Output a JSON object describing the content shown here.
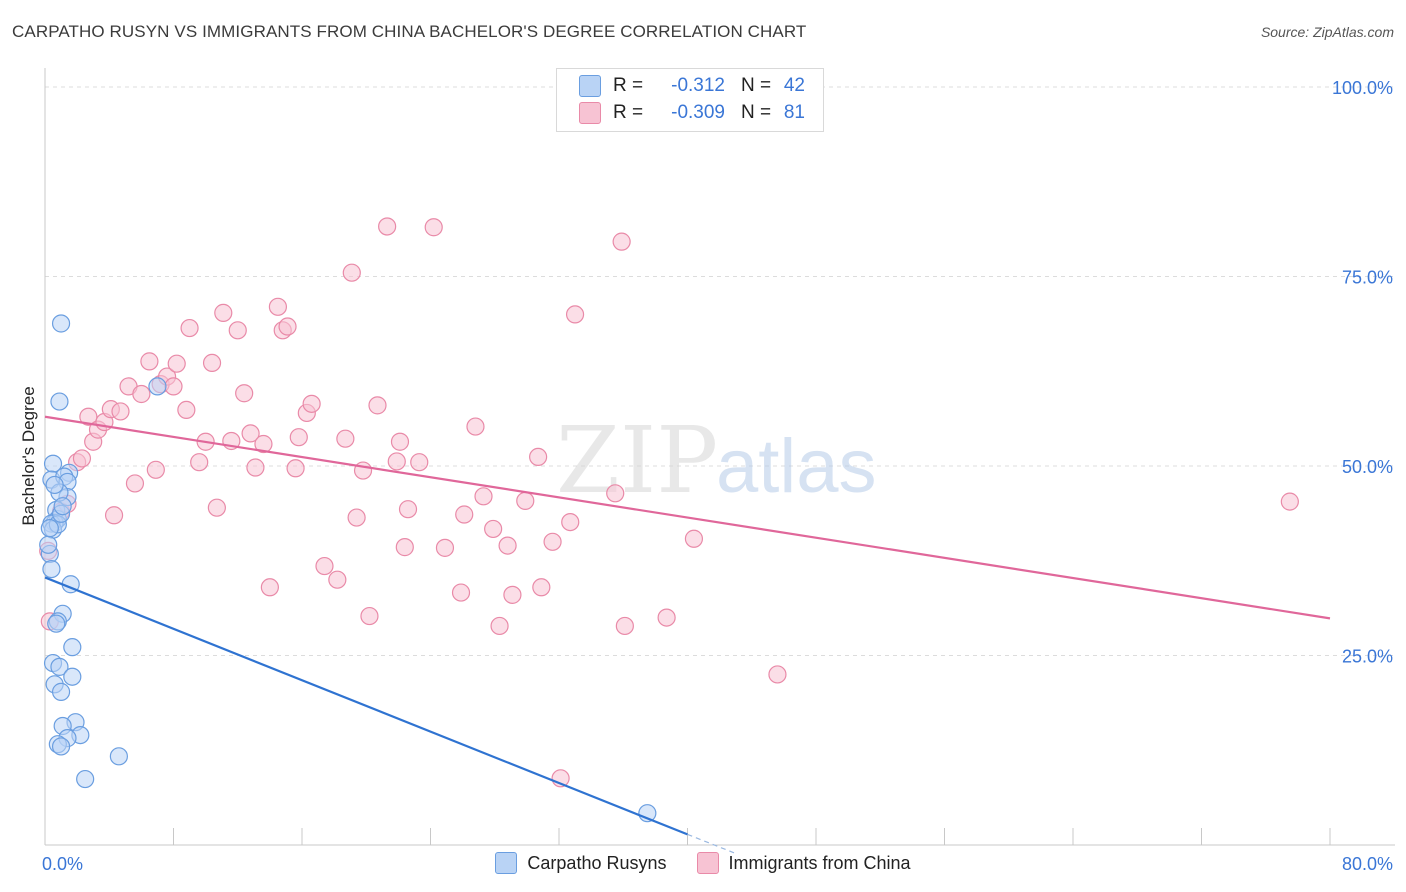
{
  "title": "CARPATHO RUSYN VS IMMIGRANTS FROM CHINA BACHELOR'S DEGREE CORRELATION CHART",
  "source": "Source: ZipAtlas.com",
  "watermark": {
    "zip": "ZIP",
    "atlas": "atlas"
  },
  "colors": {
    "blue_fill": "#b9d3f5",
    "blue_stroke": "#6a9ee0",
    "blue_line": "#2f73d1",
    "pink_fill": "#f7c3d3",
    "pink_stroke": "#e98aa8",
    "pink_line": "#e0679a",
    "axis_label": "#3a76d6",
    "grid": "#dcdcdc"
  },
  "legend": {
    "rows": [
      {
        "swatch": "blue",
        "r_label": "R =",
        "r_value": "-0.312",
        "n_label": "N =",
        "n_value": "42"
      },
      {
        "swatch": "pink",
        "r_label": "R =",
        "r_value": "-0.309",
        "n_label": "N =",
        "n_value": "81"
      }
    ]
  },
  "bottom_legend": [
    {
      "swatch": "blue",
      "label": "Carpatho Rusyns"
    },
    {
      "swatch": "pink",
      "label": "Immigrants from China"
    }
  ],
  "chart_data": {
    "type": "scatter",
    "title": "CARPATHO RUSYN VS IMMIGRANTS FROM CHINA BACHELOR'S DEGREE CORRELATION CHART",
    "xlabel": "",
    "ylabel": "Bachelor's Degree",
    "xlim": [
      0,
      80
    ],
    "ylim": [
      0,
      100
    ],
    "x_tick_labels": [
      "0.0%",
      "80.0%"
    ],
    "y_tick_labels": [
      {
        "value": 25,
        "label": "25.0%"
      },
      {
        "value": 50,
        "label": "50.0%"
      },
      {
        "value": 75,
        "label": "75.0%"
      },
      {
        "value": 100,
        "label": "100.0%"
      }
    ],
    "grid": true,
    "series": [
      {
        "name": "Carpatho Rusyns",
        "color": "blue",
        "trend": {
          "x": [
            0,
            40
          ],
          "y": [
            35.3,
            1.4
          ],
          "dashed_to": [
            43.1,
            -1.2
          ]
        },
        "points": [
          [
            1.0,
            68.8
          ],
          [
            0.9,
            58.5
          ],
          [
            7.0,
            60.5
          ],
          [
            0.5,
            50.3
          ],
          [
            0.4,
            48.2
          ],
          [
            1.5,
            49.1
          ],
          [
            1.2,
            48.6
          ],
          [
            1.4,
            47.9
          ],
          [
            1.4,
            45.9
          ],
          [
            0.7,
            44.2
          ],
          [
            0.8,
            43.0
          ],
          [
            0.6,
            42.5
          ],
          [
            0.4,
            42.4
          ],
          [
            0.5,
            41.6
          ],
          [
            0.8,
            42.3
          ],
          [
            1.0,
            43.7
          ],
          [
            0.3,
            38.4
          ],
          [
            0.2,
            39.6
          ],
          [
            0.4,
            36.4
          ],
          [
            1.6,
            34.4
          ],
          [
            1.1,
            30.5
          ],
          [
            0.8,
            29.5
          ],
          [
            0.7,
            29.2
          ],
          [
            1.7,
            26.1
          ],
          [
            0.5,
            24.0
          ],
          [
            0.9,
            23.5
          ],
          [
            1.7,
            22.2
          ],
          [
            0.6,
            21.2
          ],
          [
            1.0,
            20.2
          ],
          [
            1.9,
            16.2
          ],
          [
            1.1,
            15.7
          ],
          [
            2.2,
            14.5
          ],
          [
            1.4,
            14.1
          ],
          [
            0.8,
            13.3
          ],
          [
            1.0,
            13.0
          ],
          [
            4.6,
            11.7
          ],
          [
            2.5,
            8.7
          ],
          [
            37.5,
            4.2
          ],
          [
            0.9,
            46.5
          ],
          [
            1.1,
            44.7
          ],
          [
            0.3,
            41.8
          ],
          [
            0.6,
            47.5
          ]
        ]
      },
      {
        "name": "Immigrants from China",
        "color": "pink",
        "trend": {
          "x": [
            0,
            80
          ],
          "y": [
            56.5,
            29.9
          ]
        },
        "points": [
          [
            0.2,
            38.8
          ],
          [
            0.3,
            29.5
          ],
          [
            1.0,
            44.0
          ],
          [
            1.4,
            45.0
          ],
          [
            2.0,
            50.5
          ],
          [
            2.3,
            51.0
          ],
          [
            2.7,
            56.5
          ],
          [
            3.0,
            53.2
          ],
          [
            3.3,
            54.8
          ],
          [
            3.7,
            55.8
          ],
          [
            4.1,
            57.5
          ],
          [
            4.3,
            43.5
          ],
          [
            4.7,
            57.2
          ],
          [
            5.2,
            60.5
          ],
          [
            5.6,
            47.7
          ],
          [
            6.0,
            59.5
          ],
          [
            6.5,
            63.8
          ],
          [
            6.9,
            49.5
          ],
          [
            7.2,
            60.8
          ],
          [
            7.6,
            61.8
          ],
          [
            8.0,
            60.5
          ],
          [
            8.2,
            63.5
          ],
          [
            8.8,
            57.4
          ],
          [
            9.0,
            68.2
          ],
          [
            9.6,
            50.5
          ],
          [
            10.0,
            53.2
          ],
          [
            10.4,
            63.6
          ],
          [
            10.7,
            44.5
          ],
          [
            11.1,
            70.2
          ],
          [
            11.6,
            53.3
          ],
          [
            12.0,
            67.9
          ],
          [
            12.4,
            59.6
          ],
          [
            12.8,
            54.3
          ],
          [
            13.1,
            49.8
          ],
          [
            13.6,
            52.9
          ],
          [
            14.0,
            34.0
          ],
          [
            14.5,
            71.0
          ],
          [
            14.8,
            67.9
          ],
          [
            15.1,
            68.4
          ],
          [
            15.6,
            49.7
          ],
          [
            15.8,
            53.8
          ],
          [
            16.3,
            57.0
          ],
          [
            16.6,
            58.2
          ],
          [
            17.4,
            36.8
          ],
          [
            18.2,
            35.0
          ],
          [
            18.7,
            53.6
          ],
          [
            19.1,
            75.5
          ],
          [
            19.4,
            43.2
          ],
          [
            19.8,
            49.4
          ],
          [
            20.2,
            30.2
          ],
          [
            20.7,
            58.0
          ],
          [
            21.3,
            81.6
          ],
          [
            21.9,
            50.6
          ],
          [
            22.1,
            53.2
          ],
          [
            22.4,
            39.3
          ],
          [
            22.6,
            44.3
          ],
          [
            23.3,
            50.5
          ],
          [
            24.9,
            39.2
          ],
          [
            25.9,
            33.3
          ],
          [
            26.1,
            43.6
          ],
          [
            26.8,
            55.2
          ],
          [
            27.3,
            46.0
          ],
          [
            27.9,
            41.7
          ],
          [
            28.3,
            28.9
          ],
          [
            28.8,
            39.5
          ],
          [
            29.1,
            33.0
          ],
          [
            29.9,
            45.4
          ],
          [
            30.7,
            51.2
          ],
          [
            30.9,
            34.0
          ],
          [
            31.6,
            40.0
          ],
          [
            32.7,
            42.6
          ],
          [
            33.0,
            70.0
          ],
          [
            35.5,
            46.4
          ],
          [
            35.9,
            79.6
          ],
          [
            36.1,
            28.9
          ],
          [
            38.7,
            30.0
          ],
          [
            40.4,
            40.4
          ],
          [
            45.6,
            22.5
          ],
          [
            32.1,
            8.8
          ],
          [
            24.2,
            81.5
          ],
          [
            77.5,
            45.3
          ]
        ]
      }
    ]
  }
}
